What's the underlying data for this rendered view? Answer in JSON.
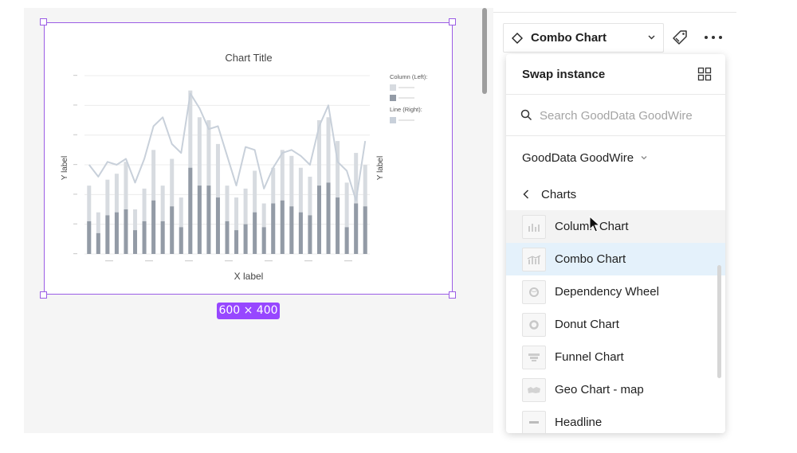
{
  "canvas": {
    "frame_size_label": "600 × 400",
    "chart": {
      "title": "Chart Title",
      "x_axis_label": "X label",
      "y_axis_left_label": "Y label",
      "y_axis_right_label": "Y label",
      "legend": {
        "column_group_label": "Column (Left):",
        "line_group_label": "Line (Right):"
      },
      "colors": {
        "column_light": "#d7dbe0",
        "column_dark": "#939ba6",
        "line": "#c8d0da"
      }
    }
  },
  "chart_data": {
    "type": "bar",
    "title": "Chart Title",
    "xlabel": "X label",
    "ylabel": "Y label",
    "series": [
      {
        "type": "bar",
        "values": [
          2.3,
          1.4,
          2.5,
          2.7,
          3.1,
          1.5,
          2.2,
          3.5,
          2.3,
          3.2,
          1.9,
          5.5,
          4.6,
          4.5,
          3.7,
          2.3,
          1.9,
          2.2,
          2.8,
          1.7,
          2.9,
          3.5,
          3.3,
          2.9,
          2.6,
          4.5,
          4.6,
          3.8,
          2.4,
          3.4,
          3.0
        ]
      },
      {
        "type": "bar",
        "values": [
          1.1,
          0.7,
          1.3,
          1.4,
          1.5,
          0.8,
          1.1,
          1.8,
          1.1,
          1.6,
          0.9,
          2.9,
          2.3,
          2.3,
          1.9,
          1.1,
          0.8,
          1.0,
          1.4,
          0.9,
          1.7,
          1.8,
          1.6,
          1.4,
          1.3,
          2.3,
          2.4,
          1.9,
          0.9,
          1.7,
          1.6
        ]
      },
      {
        "type": "line",
        "values": [
          3.0,
          2.6,
          3.1,
          3.0,
          3.2,
          2.4,
          3.2,
          4.3,
          4.6,
          3.7,
          3.4,
          5.4,
          4.9,
          4.2,
          4.3,
          3.3,
          2.3,
          3.6,
          3.5,
          2.2,
          2.9,
          3.4,
          3.5,
          3.3,
          3.0,
          4.3,
          5.0,
          3.1,
          2.8,
          1.8,
          3.8
        ]
      }
    ]
  },
  "toolbar": {
    "instance_name": "Combo Chart"
  },
  "swap_panel": {
    "title": "Swap instance",
    "search_placeholder": "Search GoodData GoodWire",
    "library_name": "GoodData GoodWire",
    "folder_name": "Charts",
    "items": [
      {
        "label": "Column Chart",
        "state": "hover",
        "icon": "column-chart-icon"
      },
      {
        "label": "Combo Chart",
        "state": "selected",
        "icon": "combo-chart-icon"
      },
      {
        "label": "Dependency Wheel",
        "state": "normal",
        "icon": "dependency-wheel-icon"
      },
      {
        "label": "Donut Chart",
        "state": "normal",
        "icon": "donut-chart-icon"
      },
      {
        "label": "Funnel Chart",
        "state": "normal",
        "icon": "funnel-chart-icon"
      },
      {
        "label": "Geo Chart - map",
        "state": "normal",
        "icon": "geo-map-icon"
      },
      {
        "label": "Headline",
        "state": "normal",
        "icon": "headline-icon"
      }
    ],
    "colors": {
      "selected_bg": "#e4f1fb",
      "hover_bg": "#f3f3f3"
    }
  }
}
